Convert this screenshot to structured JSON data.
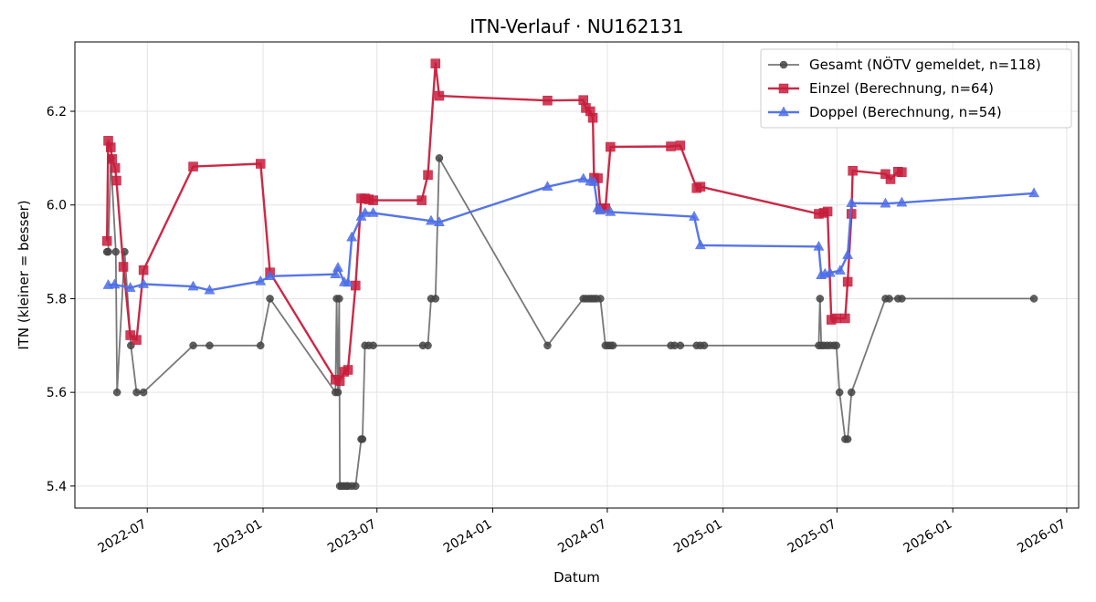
{
  "chart_data": {
    "type": "line",
    "title": "ITN-Verlauf · NU162131",
    "xlabel": "Datum",
    "ylabel": "ITN  (kleiner = besser)",
    "xlim": [
      "2022-03-08",
      "2026-07-20"
    ],
    "ylim": [
      5.353,
      6.348
    ],
    "grid": true,
    "legend_position": "top-right",
    "x_ticks": [
      {
        "date": "2022-07-01",
        "label": "2022-07"
      },
      {
        "date": "2023-01-01",
        "label": "2023-01"
      },
      {
        "date": "2023-07-01",
        "label": "2023-07"
      },
      {
        "date": "2024-01-01",
        "label": "2024-01"
      },
      {
        "date": "2024-07-01",
        "label": "2024-07"
      },
      {
        "date": "2025-01-01",
        "label": "2025-01"
      },
      {
        "date": "2025-07-01",
        "label": "2025-07"
      },
      {
        "date": "2026-01-01",
        "label": "2026-01"
      },
      {
        "date": "2026-07-01",
        "label": "2026-07"
      }
    ],
    "y_ticks": [
      5.4,
      5.6,
      5.8,
      6.0,
      6.2
    ],
    "series": [
      {
        "name": "Gesamt (NÖTV gemeldet, n=118)",
        "color": "#444444",
        "marker": "circle",
        "points": [
          [
            "2022-04-28",
            5.9
          ],
          [
            "2022-04-30",
            5.9
          ],
          [
            "2022-05-04",
            6.1
          ],
          [
            "2022-05-12",
            5.9
          ],
          [
            "2022-05-14",
            5.6
          ],
          [
            "2022-05-26",
            5.9
          ],
          [
            "2022-06-05",
            5.7
          ],
          [
            "2022-06-14",
            5.6
          ],
          [
            "2022-06-25",
            5.6
          ],
          [
            "2022-09-12",
            5.7
          ],
          [
            "2022-10-08",
            5.7
          ],
          [
            "2022-12-28",
            5.7
          ],
          [
            "2023-01-12",
            5.8
          ],
          [
            "2023-04-26",
            5.6
          ],
          [
            "2023-04-28",
            5.8
          ],
          [
            "2023-04-30",
            5.6
          ],
          [
            "2023-05-02",
            5.8
          ],
          [
            "2023-05-03",
            5.4
          ],
          [
            "2023-05-06",
            5.4
          ],
          [
            "2023-05-10",
            5.4
          ],
          [
            "2023-05-14",
            5.4
          ],
          [
            "2023-05-16",
            5.4
          ],
          [
            "2023-05-22",
            5.4
          ],
          [
            "2023-05-28",
            5.4
          ],
          [
            "2023-06-06",
            5.5
          ],
          [
            "2023-06-08",
            5.5
          ],
          [
            "2023-06-12",
            5.7
          ],
          [
            "2023-06-18",
            5.7
          ],
          [
            "2023-06-25",
            5.7
          ],
          [
            "2023-09-12",
            5.7
          ],
          [
            "2023-09-20",
            5.7
          ],
          [
            "2023-09-25",
            5.8
          ],
          [
            "2023-10-02",
            5.8
          ],
          [
            "2023-10-08",
            6.1
          ],
          [
            "2024-03-28",
            5.7
          ],
          [
            "2024-05-24",
            5.8
          ],
          [
            "2024-05-28",
            5.8
          ],
          [
            "2024-06-02",
            5.8
          ],
          [
            "2024-06-06",
            5.8
          ],
          [
            "2024-06-10",
            5.8
          ],
          [
            "2024-06-14",
            5.8
          ],
          [
            "2024-06-20",
            5.8
          ],
          [
            "2024-06-28",
            5.7
          ],
          [
            "2024-07-02",
            5.7
          ],
          [
            "2024-07-06",
            5.7
          ],
          [
            "2024-07-10",
            5.7
          ],
          [
            "2024-10-10",
            5.7
          ],
          [
            "2024-10-16",
            5.7
          ],
          [
            "2024-10-25",
            5.7
          ],
          [
            "2024-11-20",
            5.7
          ],
          [
            "2024-11-26",
            5.7
          ],
          [
            "2024-12-02",
            5.7
          ],
          [
            "2025-06-02",
            5.7
          ],
          [
            "2025-06-04",
            5.8
          ],
          [
            "2025-06-06",
            5.7
          ],
          [
            "2025-06-10",
            5.7
          ],
          [
            "2025-06-15",
            5.7
          ],
          [
            "2025-06-20",
            5.7
          ],
          [
            "2025-06-26",
            5.7
          ],
          [
            "2025-06-30",
            5.7
          ],
          [
            "2025-07-05",
            5.6
          ],
          [
            "2025-07-14",
            5.5
          ],
          [
            "2025-07-18",
            5.5
          ],
          [
            "2025-07-24",
            5.6
          ],
          [
            "2025-09-16",
            5.8
          ],
          [
            "2025-09-22",
            5.8
          ],
          [
            "2025-10-06",
            5.8
          ],
          [
            "2025-10-12",
            5.8
          ],
          [
            "2026-05-10",
            5.8
          ]
        ]
      },
      {
        "name": "Einzel (Berechnung, n=64)",
        "color": "#c81d3c",
        "marker": "square",
        "points": [
          [
            "2022-04-28",
            5.923
          ],
          [
            "2022-04-30",
            6.137
          ],
          [
            "2022-05-04",
            6.123
          ],
          [
            "2022-05-06",
            6.098
          ],
          [
            "2022-05-11",
            6.079
          ],
          [
            "2022-05-13",
            6.052
          ],
          [
            "2022-05-24",
            5.868
          ],
          [
            "2022-06-04",
            5.722
          ],
          [
            "2022-06-14",
            5.712
          ],
          [
            "2022-06-25",
            5.861
          ],
          [
            "2022-09-12",
            6.082
          ],
          [
            "2022-12-28",
            6.088
          ],
          [
            "2023-01-12",
            5.856
          ],
          [
            "2023-04-26",
            5.627
          ],
          [
            "2023-05-03",
            5.624
          ],
          [
            "2023-05-10",
            5.644
          ],
          [
            "2023-05-16",
            5.648
          ],
          [
            "2023-05-28",
            5.828
          ],
          [
            "2023-06-06",
            6.014
          ],
          [
            "2023-06-12",
            6.014
          ],
          [
            "2023-06-18",
            6.012
          ],
          [
            "2023-06-25",
            6.01
          ],
          [
            "2023-09-10",
            6.01
          ],
          [
            "2023-09-20",
            6.064
          ],
          [
            "2023-10-02",
            6.302
          ],
          [
            "2023-10-08",
            6.233
          ],
          [
            "2024-03-28",
            6.223
          ],
          [
            "2024-05-24",
            6.224
          ],
          [
            "2024-05-28",
            6.207
          ],
          [
            "2024-06-04",
            6.2
          ],
          [
            "2024-06-08",
            6.186
          ],
          [
            "2024-06-10",
            6.058
          ],
          [
            "2024-06-16",
            6.057
          ],
          [
            "2024-06-20",
            5.993
          ],
          [
            "2024-06-28",
            5.993
          ],
          [
            "2024-07-06",
            6.124
          ],
          [
            "2024-10-10",
            6.125
          ],
          [
            "2024-10-25",
            6.127
          ],
          [
            "2024-11-20",
            6.036
          ],
          [
            "2024-11-26",
            6.039
          ],
          [
            "2025-06-02",
            5.981
          ],
          [
            "2025-06-10",
            5.983
          ],
          [
            "2025-06-16",
            5.986
          ],
          [
            "2025-06-22",
            5.755
          ],
          [
            "2025-06-30",
            5.758
          ],
          [
            "2025-07-14",
            5.758
          ],
          [
            "2025-07-18",
            5.836
          ],
          [
            "2025-07-24",
            5.981
          ],
          [
            "2025-07-26",
            6.073
          ],
          [
            "2025-09-16",
            6.066
          ],
          [
            "2025-09-24",
            6.055
          ],
          [
            "2025-10-06",
            6.071
          ],
          [
            "2025-10-12",
            6.07
          ]
        ]
      },
      {
        "name": "Doppel (Berechnung, n=54)",
        "color": "#4d6ee8",
        "marker": "triangle",
        "points": [
          [
            "2022-04-30",
            5.829
          ],
          [
            "2022-05-10",
            5.83
          ],
          [
            "2022-06-04",
            5.823
          ],
          [
            "2022-06-25",
            5.831
          ],
          [
            "2022-09-12",
            5.826
          ],
          [
            "2022-10-08",
            5.818
          ],
          [
            "2022-12-28",
            5.837
          ],
          [
            "2023-01-12",
            5.848
          ],
          [
            "2023-04-26",
            5.852
          ],
          [
            "2023-04-30",
            5.866
          ],
          [
            "2023-05-10",
            5.835
          ],
          [
            "2023-05-16",
            5.834
          ],
          [
            "2023-05-22",
            5.931
          ],
          [
            "2023-06-06",
            5.975
          ],
          [
            "2023-06-12",
            5.983
          ],
          [
            "2023-06-25",
            5.983
          ],
          [
            "2023-09-25",
            5.966
          ],
          [
            "2023-10-08",
            5.963
          ],
          [
            "2024-03-28",
            6.039
          ],
          [
            "2024-05-24",
            6.056
          ],
          [
            "2024-06-04",
            6.05
          ],
          [
            "2024-06-10",
            6.049
          ],
          [
            "2024-06-16",
            5.993
          ],
          [
            "2024-06-20",
            5.988
          ],
          [
            "2024-07-06",
            5.985
          ],
          [
            "2024-11-16",
            5.975
          ],
          [
            "2024-11-26",
            5.914
          ],
          [
            "2025-06-02",
            5.911
          ],
          [
            "2025-06-06",
            5.85
          ],
          [
            "2025-06-12",
            5.853
          ],
          [
            "2025-06-20",
            5.855
          ],
          [
            "2025-07-06",
            5.86
          ],
          [
            "2025-07-18",
            5.893
          ],
          [
            "2025-07-24",
            6.004
          ],
          [
            "2025-09-16",
            6.003
          ],
          [
            "2025-10-12",
            6.005
          ],
          [
            "2026-05-10",
            6.025
          ]
        ]
      }
    ]
  }
}
